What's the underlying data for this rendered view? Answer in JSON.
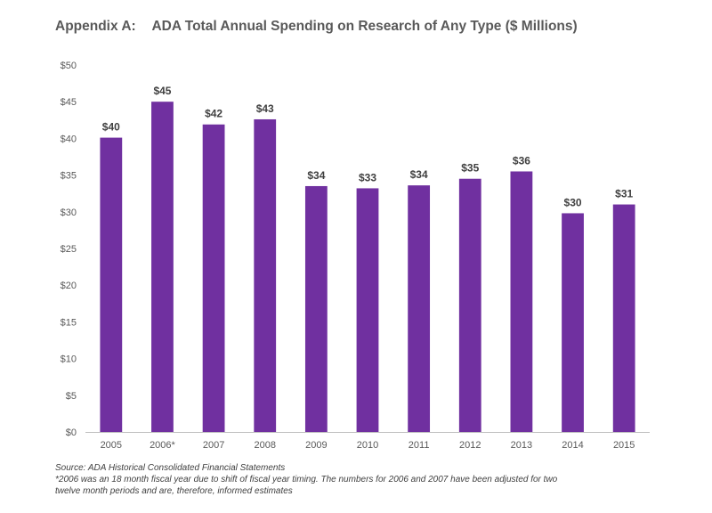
{
  "title_prefix": "Appendix A:",
  "title_main": "ADA Total Annual Spending on Research of Any Type ($ Millions)",
  "chart_data": {
    "type": "bar",
    "title": "Appendix A: ADA Total Annual Spending on Research of Any Type ($ Millions)",
    "categories": [
      "2005",
      "2006*",
      "2007",
      "2008",
      "2009",
      "2010",
      "2011",
      "2012",
      "2013",
      "2014",
      "2015"
    ],
    "values": [
      40.1,
      45.0,
      41.9,
      42.6,
      33.5,
      33.2,
      33.6,
      34.5,
      35.5,
      29.8,
      31.0
    ],
    "data_labels": [
      "$40",
      "$45",
      "$42",
      "$43",
      "$34",
      "$33",
      "$34",
      "$35",
      "$36",
      "$30",
      "$31"
    ],
    "y_ticks": [
      0,
      5,
      10,
      15,
      20,
      25,
      30,
      35,
      40,
      45,
      50
    ],
    "y_tick_labels": [
      "$0",
      "$5",
      "$10",
      "$15",
      "$20",
      "$25",
      "$30",
      "$35",
      "$40",
      "$45",
      "$50"
    ],
    "ylim": [
      0,
      50
    ],
    "xlabel": "",
    "ylabel": "",
    "grid": false,
    "bar_color": "#7030a0"
  },
  "footnotes": {
    "source": "Source: ADA Historical Consolidated Financial Statements",
    "note_line1": "*2006  was an 18 month fiscal year due to shift of fiscal year timing.  The numbers for 2006 and 2007 have been adjusted for two",
    "note_line2": "twelve month periods and are, therefore, informed estimates"
  }
}
